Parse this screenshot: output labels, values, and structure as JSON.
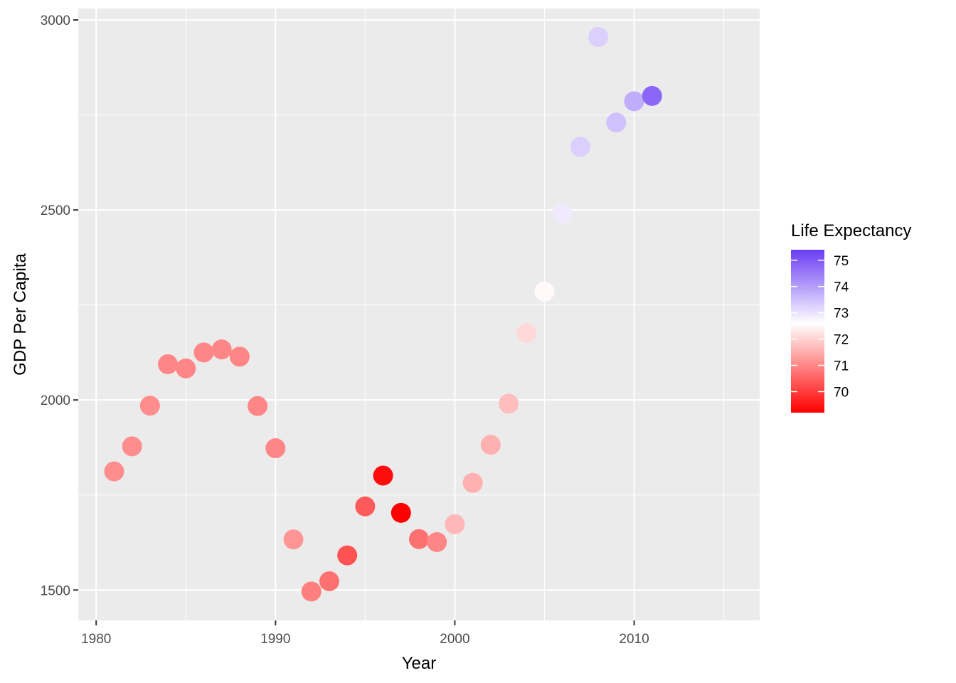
{
  "chart_data": {
    "type": "scatter",
    "xlabel": "Year",
    "ylabel": "GDP Per Capita",
    "xlim": [
      1979,
      2017
    ],
    "ylim": [
      1420,
      3030
    ],
    "x_ticks": [
      1980,
      1990,
      2000,
      2010
    ],
    "x_tick_labels": [
      "1980",
      "1990",
      "2000",
      "2010"
    ],
    "y_ticks": [
      1500,
      2000,
      2500,
      3000
    ],
    "y_tick_labels": [
      "1500",
      "2000",
      "2500",
      "3000"
    ],
    "grid": true,
    "legend": {
      "title": "Life Expectancy",
      "placement": "right",
      "color_low": "#ff0000",
      "color_mid": "#ffffff",
      "color_high": "#6a3df5",
      "range": [
        69.2,
        75.4
      ],
      "midpoint": 72.6,
      "ticks": [
        70,
        71,
        72,
        73,
        74,
        75
      ],
      "tick_labels": [
        "70",
        "71",
        "72",
        "73",
        "74",
        "75"
      ]
    },
    "points": [
      {
        "x": 1981,
        "y": 1812,
        "life_expectancy": 70.9
      },
      {
        "x": 1982,
        "y": 1878,
        "life_expectancy": 70.9
      },
      {
        "x": 1983,
        "y": 1985,
        "life_expectancy": 70.9
      },
      {
        "x": 1984,
        "y": 2094,
        "life_expectancy": 70.8
      },
      {
        "x": 1985,
        "y": 2083,
        "life_expectancy": 70.8
      },
      {
        "x": 1986,
        "y": 2125,
        "life_expectancy": 70.8
      },
      {
        "x": 1987,
        "y": 2133,
        "life_expectancy": 70.8
      },
      {
        "x": 1988,
        "y": 2114,
        "life_expectancy": 70.8
      },
      {
        "x": 1989,
        "y": 1984,
        "life_expectancy": 70.8
      },
      {
        "x": 1990,
        "y": 1873,
        "life_expectancy": 70.8
      },
      {
        "x": 1991,
        "y": 1633,
        "life_expectancy": 71.0
      },
      {
        "x": 1992,
        "y": 1496,
        "life_expectancy": 70.7
      },
      {
        "x": 1993,
        "y": 1523,
        "life_expectancy": 70.5
      },
      {
        "x": 1994,
        "y": 1591,
        "life_expectancy": 70.1
      },
      {
        "x": 1995,
        "y": 1720,
        "life_expectancy": 70.2
      },
      {
        "x": 1996,
        "y": 1801,
        "life_expectancy": 69.3
      },
      {
        "x": 1997,
        "y": 1703,
        "life_expectancy": 69.2
      },
      {
        "x": 1998,
        "y": 1634,
        "life_expectancy": 70.5
      },
      {
        "x": 1999,
        "y": 1626,
        "life_expectancy": 70.8
      },
      {
        "x": 2000,
        "y": 1673,
        "life_expectancy": 71.5
      },
      {
        "x": 2001,
        "y": 1782,
        "life_expectancy": 71.4
      },
      {
        "x": 2002,
        "y": 1882,
        "life_expectancy": 71.4
      },
      {
        "x": 2003,
        "y": 1990,
        "life_expectancy": 71.6
      },
      {
        "x": 2004,
        "y": 2176,
        "life_expectancy": 72.0
      },
      {
        "x": 2005,
        "y": 2285,
        "life_expectancy": 72.5
      },
      {
        "x": 2006,
        "y": 2491,
        "life_expectancy": 72.9
      },
      {
        "x": 2007,
        "y": 2666,
        "life_expectancy": 73.3
      },
      {
        "x": 2008,
        "y": 2955,
        "life_expectancy": 73.3
      },
      {
        "x": 2009,
        "y": 2730,
        "life_expectancy": 73.5
      },
      {
        "x": 2010,
        "y": 2786,
        "life_expectancy": 73.8
      },
      {
        "x": 2011,
        "y": 2800,
        "life_expectancy": 74.8
      }
    ]
  }
}
